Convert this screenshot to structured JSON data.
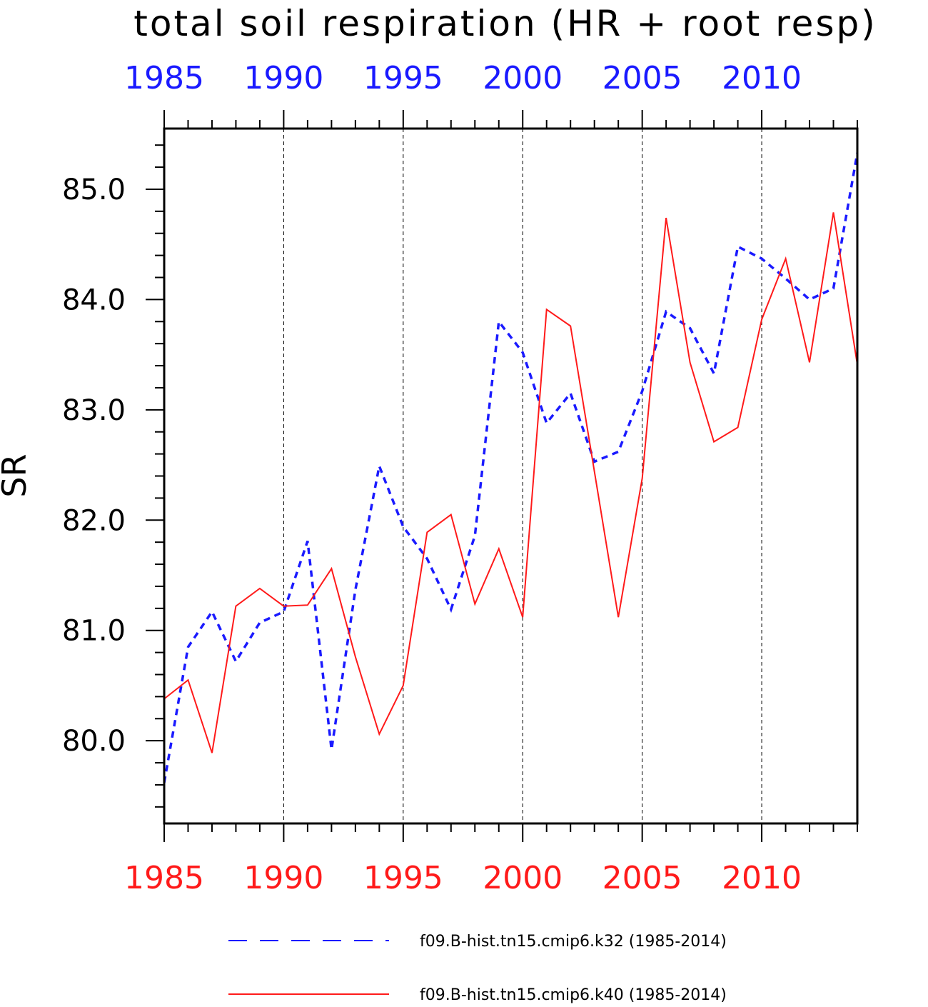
{
  "chart_data": {
    "type": "line",
    "title": "total soil respiration (HR + root resp)",
    "ylabel": "SR",
    "xlim": [
      1985,
      2014
    ],
    "ylim": [
      79.25,
      85.55
    ],
    "x_ticks": [
      "1985",
      "1990",
      "1995",
      "2000",
      "2005",
      "2010"
    ],
    "x_tick_values": [
      1985,
      1990,
      1995,
      2000,
      2005,
      2010
    ],
    "y_ticks": [
      "80.0",
      "81.0",
      "82.0",
      "83.0",
      "84.0",
      "85.0"
    ],
    "y_tick_values": [
      80,
      81,
      82,
      83,
      84,
      85
    ],
    "top_axis_color": "#1a1aff",
    "bottom_axis_color": "#ff1a1a",
    "vertical_grid": true,
    "legend_position": "bottom",
    "x": [
      1985,
      1986,
      1987,
      1988,
      1989,
      1990,
      1991,
      1992,
      1993,
      1994,
      1995,
      1996,
      1997,
      1998,
      1999,
      2000,
      2001,
      2002,
      2003,
      2004,
      2005,
      2006,
      2007,
      2008,
      2009,
      2010,
      2011,
      2012,
      2013,
      2014
    ],
    "series": [
      {
        "name": "f09.B-hist.tn15.cmip6.k32 (1985-2014)",
        "color": "#1a1aff",
        "style": "dashed",
        "values": [
          79.62,
          80.85,
          81.17,
          80.72,
          81.07,
          81.17,
          81.81,
          79.92,
          81.37,
          82.49,
          81.94,
          81.65,
          81.19,
          81.86,
          83.8,
          83.52,
          82.88,
          83.15,
          82.53,
          82.62,
          83.17,
          83.89,
          83.74,
          83.33,
          84.48,
          84.37,
          84.19,
          84.0,
          84.1,
          85.33
        ]
      },
      {
        "name": "f09.B-hist.tn15.cmip6.k40 (1985-2014)",
        "color": "#ff1a1a",
        "style": "solid",
        "values": [
          80.38,
          80.55,
          79.89,
          81.22,
          81.38,
          81.22,
          81.23,
          81.56,
          80.76,
          80.06,
          80.5,
          81.89,
          82.05,
          81.24,
          81.74,
          81.12,
          83.91,
          83.76,
          82.44,
          81.12,
          82.38,
          84.74,
          83.43,
          82.71,
          82.84,
          83.82,
          84.37,
          83.43,
          84.79,
          83.41
        ]
      }
    ]
  }
}
